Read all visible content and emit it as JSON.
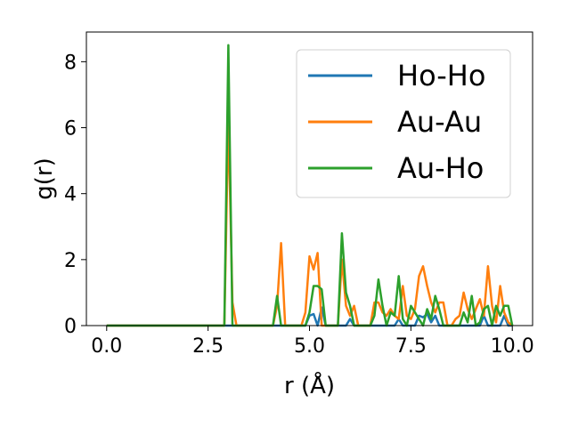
{
  "chart_data": {
    "type": "line",
    "xlabel": "r (Å)",
    "ylabel": "g(r)",
    "xlim": [
      -0.5,
      10.5
    ],
    "ylim": [
      0,
      8.9
    ],
    "xticks": [
      0.0,
      2.5,
      5.0,
      7.5,
      10.0
    ],
    "xtick_labels": [
      "0.0",
      "2.5",
      "5.0",
      "7.5",
      "10.0"
    ],
    "yticks": [
      0,
      2,
      4,
      6,
      8
    ],
    "ytick_labels": [
      "0",
      "2",
      "4",
      "6",
      "8"
    ],
    "grid": false,
    "legend_position": "top-right",
    "series": [
      {
        "name": "Ho-Ho",
        "color": "#1f77b4",
        "x": [
          0,
          4.9,
          5.0,
          5.1,
          5.2,
          5.3,
          5.4,
          5.5,
          5.9,
          6.0,
          6.1,
          6.2,
          7.1,
          7.2,
          7.3,
          7.6,
          7.7,
          7.8,
          7.9,
          8.0,
          8.1,
          8.2,
          8.3,
          9.2,
          9.3,
          9.4,
          9.7,
          9.8,
          9.9,
          10.0
        ],
        "y": [
          0,
          0,
          0.3,
          0.35,
          0,
          0.55,
          0,
          0,
          0,
          0.2,
          0,
          0,
          0,
          0.2,
          0,
          0,
          0.3,
          0.25,
          0.35,
          0.1,
          0.3,
          0,
          0,
          0,
          0.3,
          0,
          0,
          0.3,
          0,
          0
        ]
      },
      {
        "name": "Au-Au",
        "color": "#ff7f0e",
        "x": [
          0,
          2.8,
          2.9,
          3.0,
          3.1,
          3.2,
          3.3,
          4.1,
          4.2,
          4.3,
          4.4,
          4.8,
          4.9,
          5.0,
          5.1,
          5.2,
          5.3,
          5.4,
          5.7,
          5.8,
          5.9,
          6.0,
          6.1,
          6.2,
          6.5,
          6.6,
          6.7,
          6.8,
          6.9,
          7.0,
          7.1,
          7.2,
          7.3,
          7.4,
          7.5,
          7.6,
          7.7,
          7.8,
          7.9,
          8.0,
          8.1,
          8.2,
          8.3,
          8.4,
          8.5,
          8.6,
          8.7,
          8.8,
          8.9,
          9.0,
          9.1,
          9.2,
          9.3,
          9.4,
          9.5,
          9.6,
          9.7,
          9.8,
          9.9,
          10.0
        ],
        "y": [
          0,
          0,
          0,
          6.3,
          0.7,
          0,
          0,
          0,
          0.6,
          2.5,
          0,
          0,
          0.4,
          2.1,
          1.7,
          2.2,
          0,
          0,
          0,
          2.0,
          0.6,
          0.3,
          0.6,
          0,
          0,
          0.7,
          0.7,
          0.4,
          0.3,
          0.5,
          0.3,
          0.2,
          1.2,
          0.3,
          0.2,
          0.5,
          1.5,
          1.8,
          1.2,
          0.7,
          0.4,
          0.7,
          0.7,
          0,
          0,
          0.2,
          0.3,
          1.0,
          0.5,
          0.2,
          0.5,
          0.8,
          0.3,
          1.8,
          0.6,
          0.1,
          1.2,
          0.4,
          0.1,
          0
        ]
      },
      {
        "name": "Au-Ho",
        "color": "#2ca02c",
        "x": [
          0,
          2.8,
          2.9,
          3.0,
          3.1,
          3.2,
          4.1,
          4.2,
          4.3,
          4.9,
          5.0,
          5.1,
          5.2,
          5.3,
          5.4,
          5.5,
          5.7,
          5.8,
          5.9,
          6.0,
          6.1,
          6.5,
          6.6,
          6.7,
          6.8,
          6.9,
          7.0,
          7.1,
          7.2,
          7.3,
          7.4,
          7.5,
          7.6,
          7.8,
          7.9,
          8.0,
          8.1,
          8.2,
          8.3,
          8.7,
          8.8,
          8.9,
          9.0,
          9.1,
          9.2,
          9.3,
          9.4,
          9.5,
          9.6,
          9.7,
          9.8,
          9.9,
          10.0
        ],
        "y": [
          0,
          0,
          0,
          8.5,
          0,
          0,
          0,
          0.9,
          0,
          0,
          0.4,
          1.2,
          1.2,
          1.1,
          0,
          0,
          0,
          2.8,
          1.0,
          0.6,
          0,
          0,
          0.3,
          1.4,
          0.6,
          0,
          0.4,
          0.3,
          1.5,
          0.2,
          0,
          0.6,
          0.4,
          0,
          0.5,
          0.2,
          0.9,
          0.5,
          0,
          0,
          0.4,
          0.1,
          0.9,
          0,
          0.1,
          0.5,
          0.6,
          0,
          0.6,
          0.3,
          0.6,
          0.6,
          0
        ]
      }
    ]
  }
}
